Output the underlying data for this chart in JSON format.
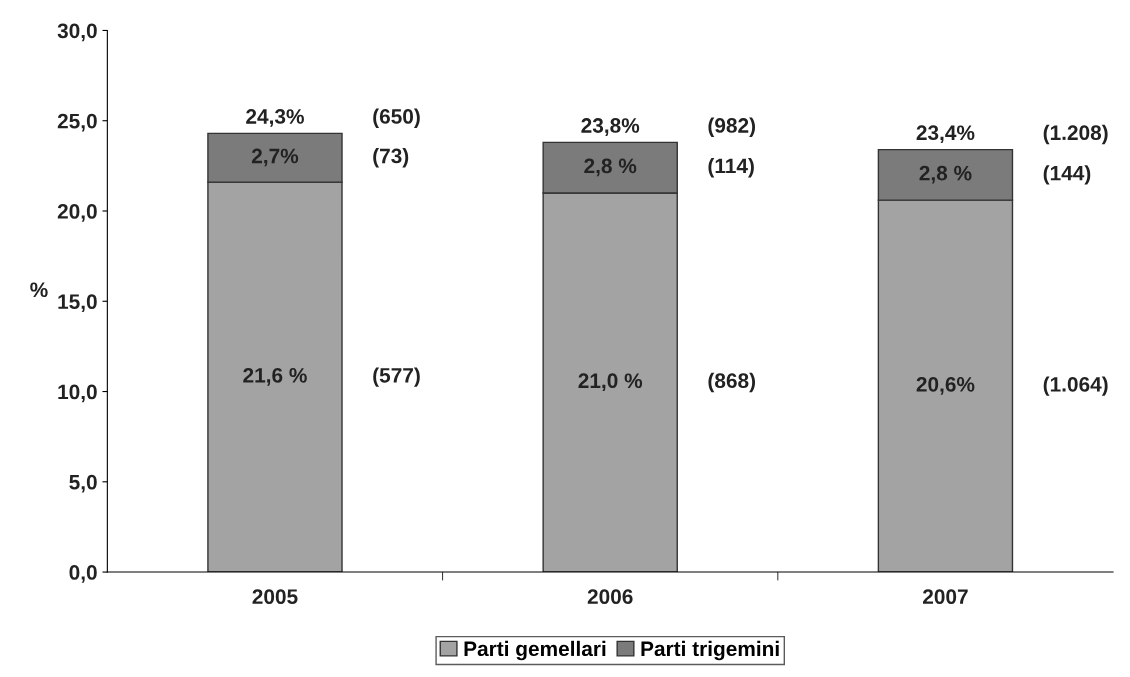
{
  "chart_data": {
    "type": "bar",
    "stacked": true,
    "ylabel": "%",
    "categories": [
      "2005",
      "2006",
      "2007"
    ],
    "series": [
      {
        "name": "Parti gemellari",
        "color": "#a3a3a3",
        "values": [
          21.6,
          21.0,
          20.6
        ],
        "value_labels": [
          "21,6 %",
          "21,0 %",
          "20,6%"
        ]
      },
      {
        "name": "Parti trigemini",
        "color": "#7b7b7b",
        "values": [
          2.7,
          2.8,
          2.8
        ],
        "value_labels": [
          "2,7%",
          "2,8 %",
          "2,8 %"
        ]
      }
    ],
    "totals": [
      "24,3%",
      "23,8%",
      "23,4%"
    ],
    "annotations": [
      "(577)",
      "(868)",
      "(1.064)",
      "(73)",
      "(114)",
      "(144)",
      "(650)",
      "(982)",
      "(1.208)"
    ],
    "ylim": [
      0,
      30
    ],
    "yticks": [
      {
        "value": 0,
        "label": "0,0"
      },
      {
        "value": 5,
        "label": "5,0"
      },
      {
        "value": 10,
        "label": "10,0"
      },
      {
        "value": 15,
        "label": "15,0"
      },
      {
        "value": 20,
        "label": "20,0"
      },
      {
        "value": 25,
        "label": "25,0"
      },
      {
        "value": 30,
        "label": "30,0"
      }
    ],
    "grid": false,
    "legend": "bottom"
  }
}
